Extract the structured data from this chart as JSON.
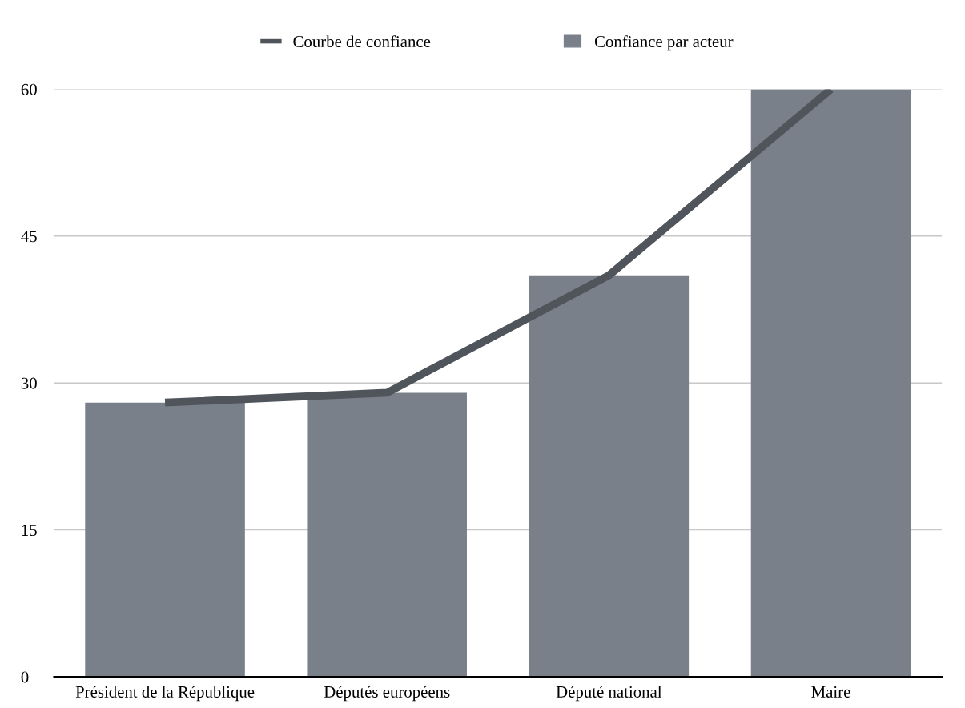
{
  "chart_data": {
    "type": "bar",
    "categories": [
      "Président de la République",
      "Députés européens",
      "Député national",
      "Maire"
    ],
    "series": [
      {
        "name": "Courbe de confiance",
        "type": "line",
        "color": "#50555c",
        "values": [
          28,
          29,
          41,
          60
        ]
      },
      {
        "name": "Confiance par acteur",
        "color": "#7a808a",
        "values": [
          28,
          29,
          41,
          60
        ]
      }
    ],
    "ylim": [
      0,
      60
    ],
    "yticks": [
      0,
      15,
      30,
      45,
      60
    ],
    "grid": "y",
    "legend": "top"
  }
}
